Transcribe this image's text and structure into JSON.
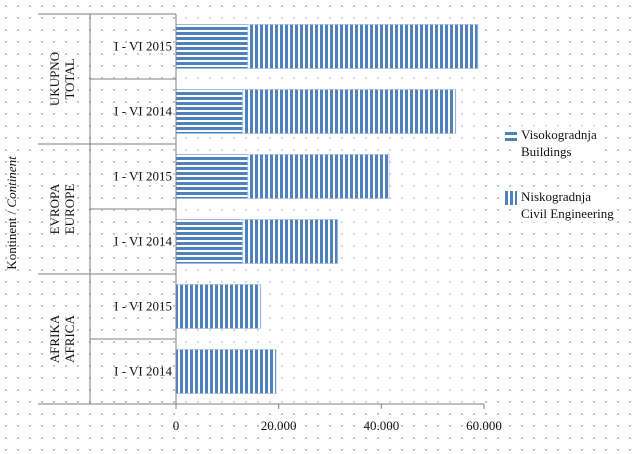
{
  "chart_data": {
    "type": "bar",
    "orientation": "horizontal",
    "stacked": true,
    "y_axis_title_plain": "Kontinent /",
    "y_axis_title_italic": "Continent",
    "groups": [
      {
        "label_1": "AFRIKA",
        "label_2": "AFRICA",
        "categories": [
          "I - VI 2014",
          "I - VI 2015"
        ]
      },
      {
        "label_1": "EVROPA",
        "label_2": "EUROPE",
        "categories": [
          "I - VI 2014",
          "I - VI 2015"
        ]
      },
      {
        "label_1": "UKUPNO",
        "label_2": "TOTAL",
        "categories": [
          "I - VI 2014",
          "I - VI 2015"
        ]
      }
    ],
    "categories": [
      "I - VI 2014",
      "I - VI 2015",
      "I - VI 2014",
      "I - VI 2015",
      "I - VI 2014",
      "I - VI 2015"
    ],
    "series": [
      {
        "name": "Visokogradnja\nBuildings",
        "values": [
          0,
          0,
          13000,
          14000,
          13000,
          14000
        ],
        "pattern": "horizontal-stripes",
        "color": "#4f81bd"
      },
      {
        "name": "Niskogradnja\nCivil Engineering",
        "values": [
          19500,
          16500,
          18500,
          27500,
          41500,
          44800
        ],
        "pattern": "vertical-stripes",
        "color": "#4f81bd"
      }
    ],
    "xlim": [
      0,
      60000
    ],
    "x_ticks": [
      0,
      20000,
      40000,
      60000
    ],
    "x_tick_labels": [
      "0",
      "20.000",
      "40.000",
      "60.000"
    ],
    "legend_position": "right"
  }
}
